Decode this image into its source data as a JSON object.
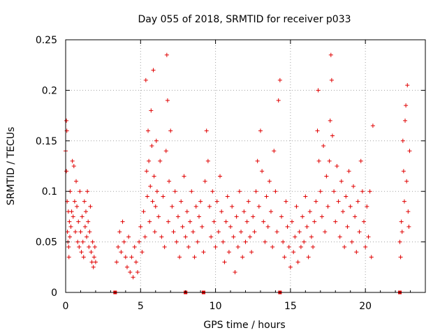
{
  "chart_data": {
    "type": "scatter",
    "title": "Day 055 of 2018, SRMTID for receiver p033",
    "xlabel": "GPS time / hours",
    "ylabel": "SRMTID / TECUs",
    "xlim": [
      0,
      24
    ],
    "ylim": [
      0,
      0.25
    ],
    "x_ticks": [
      0,
      5,
      10,
      15,
      20
    ],
    "x_tick_labels": [
      "0",
      "5",
      "10",
      "15",
      "20"
    ],
    "y_ticks": [
      0,
      0.05,
      0.1,
      0.15,
      0.2,
      0.25
    ],
    "y_tick_labels": [
      "0",
      "0.05",
      "0.1",
      "0.15",
      "0.2",
      "0.25"
    ],
    "grid": true,
    "marker_color": "#e00000",
    "gap_markers_x": [
      3.3,
      8.0,
      9.2,
      14.3,
      22.3
    ],
    "series": [
      {
        "name": "SRMTID",
        "points": [
          [
            0.0,
            0.14
          ],
          [
            0.05,
            0.17
          ],
          [
            0.05,
            0.12
          ],
          [
            0.08,
            0.16
          ],
          [
            0.1,
            0.09
          ],
          [
            0.12,
            0.06
          ],
          [
            0.15,
            0.05
          ],
          [
            0.18,
            0.08
          ],
          [
            0.2,
            0.045
          ],
          [
            0.22,
            0.035
          ],
          [
            0.25,
            0.07
          ],
          [
            0.28,
            0.055
          ],
          [
            0.3,
            0.1
          ],
          [
            0.35,
            0.065
          ],
          [
            0.4,
            0.08
          ],
          [
            0.45,
            0.13
          ],
          [
            0.5,
            0.075
          ],
          [
            0.55,
            0.125
          ],
          [
            0.6,
            0.09
          ],
          [
            0.65,
            0.06
          ],
          [
            0.7,
            0.11
          ],
          [
            0.75,
            0.085
          ],
          [
            0.8,
            0.05
          ],
          [
            0.85,
            0.07
          ],
          [
            0.9,
            0.045
          ],
          [
            0.95,
            0.1
          ],
          [
            1.0,
            0.06
          ],
          [
            1.05,
            0.04
          ],
          [
            1.1,
            0.075
          ],
          [
            1.15,
            0.05
          ],
          [
            1.2,
            0.035
          ],
          [
            1.25,
            0.09
          ],
          [
            1.3,
            0.065
          ],
          [
            1.35,
            0.08
          ],
          [
            1.4,
            0.055
          ],
          [
            1.45,
            0.1
          ],
          [
            1.5,
            0.07
          ],
          [
            1.55,
            0.045
          ],
          [
            1.6,
            0.06
          ],
          [
            1.65,
            0.085
          ],
          [
            1.7,
            0.04
          ],
          [
            1.75,
            0.03
          ],
          [
            1.8,
            0.05
          ],
          [
            1.85,
            0.025
          ],
          [
            1.9,
            0.035
          ],
          [
            1.95,
            0.045
          ],
          [
            2.0,
            0.03
          ],
          [
            3.4,
            0.03
          ],
          [
            3.5,
            0.045
          ],
          [
            3.6,
            0.06
          ],
          [
            3.7,
            0.04
          ],
          [
            3.8,
            0.07
          ],
          [
            3.9,
            0.05
          ],
          [
            4.0,
            0.035
          ],
          [
            4.1,
            0.025
          ],
          [
            4.2,
            0.055
          ],
          [
            4.3,
            0.02
          ],
          [
            4.4,
            0.035
          ],
          [
            4.5,
            0.015
          ],
          [
            4.6,
            0.045
          ],
          [
            4.7,
            0.03
          ],
          [
            4.8,
            0.02
          ],
          [
            4.9,
            0.05
          ],
          [
            5.0,
            0.065
          ],
          [
            5.1,
            0.04
          ],
          [
            5.2,
            0.08
          ],
          [
            5.3,
            0.055
          ],
          [
            5.35,
            0.21
          ],
          [
            5.4,
            0.12
          ],
          [
            5.45,
            0.095
          ],
          [
            5.5,
            0.16
          ],
          [
            5.55,
            0.13
          ],
          [
            5.6,
            0.07
          ],
          [
            5.65,
            0.105
          ],
          [
            5.7,
            0.18
          ],
          [
            5.75,
            0.145
          ],
          [
            5.8,
            0.09
          ],
          [
            5.85,
            0.22
          ],
          [
            5.9,
            0.115
          ],
          [
            5.95,
            0.06
          ],
          [
            6.0,
            0.085
          ],
          [
            6.05,
            0.15
          ],
          [
            6.1,
            0.1
          ],
          [
            6.2,
            0.075
          ],
          [
            6.3,
            0.13
          ],
          [
            6.4,
            0.055
          ],
          [
            6.5,
            0.095
          ],
          [
            6.6,
            0.045
          ],
          [
            6.7,
            0.14
          ],
          [
            6.75,
            0.235
          ],
          [
            6.8,
            0.19
          ],
          [
            6.85,
            0.07
          ],
          [
            6.9,
            0.11
          ],
          [
            7.0,
            0.16
          ],
          [
            7.1,
            0.085
          ],
          [
            7.2,
            0.06
          ],
          [
            7.3,
            0.1
          ],
          [
            7.4,
            0.05
          ],
          [
            7.5,
            0.075
          ],
          [
            7.6,
            0.035
          ],
          [
            7.7,
            0.09
          ],
          [
            7.8,
            0.065
          ],
          [
            7.9,
            0.115
          ],
          [
            8.0,
            0.055
          ],
          [
            8.1,
            0.08
          ],
          [
            8.2,
            0.045
          ],
          [
            8.3,
            0.07
          ],
          [
            8.4,
            0.1
          ],
          [
            8.5,
            0.06
          ],
          [
            8.6,
            0.035
          ],
          [
            8.7,
            0.085
          ],
          [
            8.8,
            0.05
          ],
          [
            8.9,
            0.075
          ],
          [
            9.0,
            0.09
          ],
          [
            9.1,
            0.065
          ],
          [
            9.2,
            0.04
          ],
          [
            9.3,
            0.11
          ],
          [
            9.4,
            0.16
          ],
          [
            9.5,
            0.13
          ],
          [
            9.6,
            0.085
          ],
          [
            9.7,
            0.055
          ],
          [
            9.8,
            0.1
          ],
          [
            9.9,
            0.07
          ],
          [
            10.0,
            0.045
          ],
          [
            10.1,
            0.09
          ],
          [
            10.2,
            0.06
          ],
          [
            10.3,
            0.115
          ],
          [
            10.4,
            0.08
          ],
          [
            10.5,
            0.05
          ],
          [
            10.6,
            0.03
          ],
          [
            10.7,
            0.07
          ],
          [
            10.8,
            0.095
          ],
          [
            10.9,
            0.04
          ],
          [
            11.0,
            0.065
          ],
          [
            11.1,
            0.085
          ],
          [
            11.2,
            0.055
          ],
          [
            11.3,
            0.02
          ],
          [
            11.4,
            0.075
          ],
          [
            11.5,
            0.045
          ],
          [
            11.6,
            0.1
          ],
          [
            11.7,
            0.06
          ],
          [
            11.8,
            0.035
          ],
          [
            11.9,
            0.08
          ],
          [
            12.0,
            0.05
          ],
          [
            12.1,
            0.07
          ],
          [
            12.2,
            0.09
          ],
          [
            12.3,
            0.055
          ],
          [
            12.4,
            0.04
          ],
          [
            12.5,
            0.075
          ],
          [
            12.6,
            0.06
          ],
          [
            12.7,
            0.1
          ],
          [
            12.8,
            0.13
          ],
          [
            12.9,
            0.085
          ],
          [
            13.0,
            0.16
          ],
          [
            13.1,
            0.12
          ],
          [
            13.2,
            0.07
          ],
          [
            13.3,
            0.05
          ],
          [
            13.4,
            0.095
          ],
          [
            13.5,
            0.065
          ],
          [
            13.6,
            0.11
          ],
          [
            13.7,
            0.08
          ],
          [
            13.8,
            0.045
          ],
          [
            13.9,
            0.14
          ],
          [
            14.0,
            0.1
          ],
          [
            14.1,
            0.06
          ],
          [
            14.2,
            0.19
          ],
          [
            14.3,
            0.21
          ],
          [
            14.4,
            0.075
          ],
          [
            14.5,
            0.05
          ],
          [
            14.6,
            0.035
          ],
          [
            14.7,
            0.09
          ],
          [
            14.8,
            0.065
          ],
          [
            14.9,
            0.045
          ],
          [
            15.0,
            0.025
          ],
          [
            15.1,
            0.07
          ],
          [
            15.2,
            0.04
          ],
          [
            15.3,
            0.055
          ],
          [
            15.4,
            0.085
          ],
          [
            15.5,
            0.03
          ],
          [
            15.6,
            0.06
          ],
          [
            15.7,
            0.045
          ],
          [
            15.8,
            0.075
          ],
          [
            15.9,
            0.05
          ],
          [
            16.0,
            0.095
          ],
          [
            16.1,
            0.065
          ],
          [
            16.2,
            0.035
          ],
          [
            16.3,
            0.08
          ],
          [
            16.4,
            0.055
          ],
          [
            16.5,
            0.045
          ],
          [
            16.6,
            0.07
          ],
          [
            16.7,
            0.09
          ],
          [
            16.8,
            0.16
          ],
          [
            16.85,
            0.2
          ],
          [
            16.9,
            0.13
          ],
          [
            17.0,
            0.1
          ],
          [
            17.1,
            0.075
          ],
          [
            17.2,
            0.145
          ],
          [
            17.3,
            0.06
          ],
          [
            17.4,
            0.115
          ],
          [
            17.5,
            0.085
          ],
          [
            17.6,
            0.13
          ],
          [
            17.65,
            0.17
          ],
          [
            17.7,
            0.235
          ],
          [
            17.75,
            0.21
          ],
          [
            17.8,
            0.155
          ],
          [
            17.9,
            0.1
          ],
          [
            18.0,
            0.07
          ],
          [
            18.1,
            0.125
          ],
          [
            18.2,
            0.09
          ],
          [
            18.3,
            0.055
          ],
          [
            18.4,
            0.11
          ],
          [
            18.5,
            0.08
          ],
          [
            18.6,
            0.045
          ],
          [
            18.7,
            0.095
          ],
          [
            18.8,
            0.065
          ],
          [
            18.9,
            0.12
          ],
          [
            19.0,
            0.085
          ],
          [
            19.1,
            0.05
          ],
          [
            19.2,
            0.105
          ],
          [
            19.3,
            0.075
          ],
          [
            19.4,
            0.04
          ],
          [
            19.5,
            0.09
          ],
          [
            19.6,
            0.06
          ],
          [
            19.7,
            0.13
          ],
          [
            19.8,
            0.1
          ],
          [
            19.9,
            0.07
          ],
          [
            20.0,
            0.045
          ],
          [
            20.1,
            0.085
          ],
          [
            20.2,
            0.055
          ],
          [
            20.3,
            0.1
          ],
          [
            20.4,
            0.035
          ],
          [
            20.5,
            0.165
          ],
          [
            22.3,
            0.05
          ],
          [
            22.35,
            0.035
          ],
          [
            22.4,
            0.07
          ],
          [
            22.45,
            0.06
          ],
          [
            22.5,
            0.15
          ],
          [
            22.55,
            0.12
          ],
          [
            22.6,
            0.09
          ],
          [
            22.65,
            0.17
          ],
          [
            22.7,
            0.185
          ],
          [
            22.75,
            0.11
          ],
          [
            22.8,
            0.205
          ],
          [
            22.85,
            0.08
          ],
          [
            22.9,
            0.065
          ],
          [
            22.95,
            0.14
          ]
        ]
      }
    ]
  }
}
